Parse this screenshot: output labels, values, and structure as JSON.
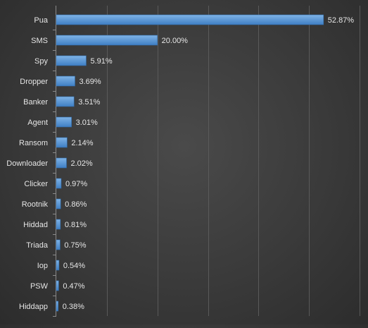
{
  "chart_data": {
    "type": "bar",
    "orientation": "horizontal",
    "categories": [
      "Pua",
      "SMS",
      "Spy",
      "Dropper",
      "Banker",
      "Agent",
      "Ransom",
      "Downloader",
      "Clicker",
      "Rootnik",
      "Hiddad",
      "Triada",
      "Iop",
      "PSW",
      "Hiddapp"
    ],
    "values": [
      52.87,
      20.0,
      5.91,
      3.69,
      3.51,
      3.01,
      2.14,
      2.02,
      0.97,
      0.86,
      0.81,
      0.75,
      0.54,
      0.47,
      0.38
    ],
    "data_labels": [
      "52.87%",
      "20.00%",
      "5.91%",
      "3.69%",
      "3.51%",
      "3.01%",
      "2.14%",
      "2.02%",
      "0.97%",
      "0.86%",
      "0.81%",
      "0.75%",
      "0.54%",
      "0.47%",
      "0.38%"
    ],
    "xlim": [
      0,
      60
    ],
    "x_gridline_step": 10,
    "grid": true,
    "legend": "none",
    "title": "",
    "xlabel": "",
    "ylabel": ""
  },
  "colors": {
    "bar_top": "#7fb3e6",
    "bar_bottom": "#3f7fc4",
    "bar_edge": "#2f6aa8",
    "gridline": "#5a5a5a",
    "axis": "#8a8a8a",
    "text": "#e6e6e6"
  }
}
